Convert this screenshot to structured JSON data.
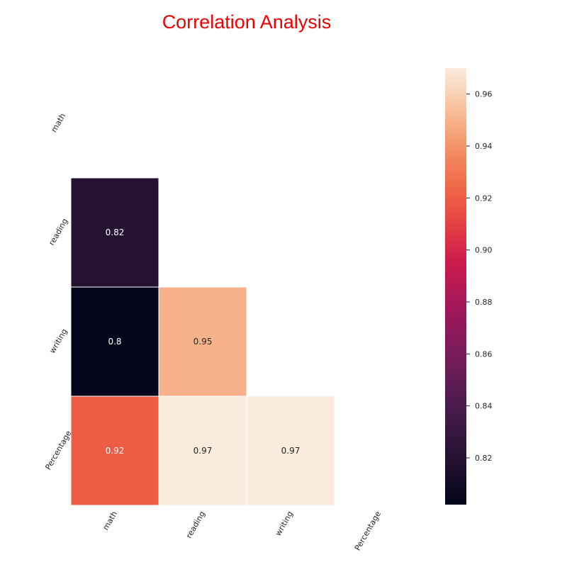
{
  "chart_data": {
    "type": "heatmap",
    "title": "Correlation Analysis",
    "title_color": "#ee0000",
    "x_tick_labels": [
      "math",
      "reading",
      "writing",
      "Percentage"
    ],
    "y_tick_labels": [
      "math",
      "reading",
      "writing",
      "Percentage"
    ],
    "cells": [
      {
        "row": "reading",
        "col": "math",
        "value": 0.82,
        "label": "0.82"
      },
      {
        "row": "writing",
        "col": "math",
        "value": 0.8,
        "label": "0.8"
      },
      {
        "row": "writing",
        "col": "reading",
        "value": 0.95,
        "label": "0.95"
      },
      {
        "row": "Percentage",
        "col": "math",
        "value": 0.92,
        "label": "0.92"
      },
      {
        "row": "Percentage",
        "col": "reading",
        "value": 0.97,
        "label": "0.97"
      },
      {
        "row": "Percentage",
        "col": "writing",
        "value": 0.97,
        "label": "0.97"
      }
    ],
    "mask": "upper triangle including diagonal hidden",
    "colormap": "rocket",
    "colorbar": {
      "range": [
        0.802,
        0.97
      ],
      "ticks": [
        0.82,
        0.84,
        0.86,
        0.88,
        0.9,
        0.92,
        0.94,
        0.96
      ],
      "tick_labels": [
        "0.82",
        "0.84",
        "0.86",
        "0.88",
        "0.90",
        "0.92",
        "0.94",
        "0.96"
      ],
      "placement": "right"
    },
    "grid": false
  }
}
